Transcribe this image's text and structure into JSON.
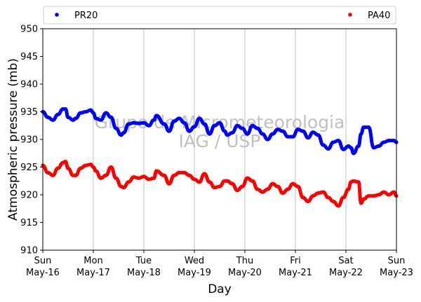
{
  "chart_data": {
    "type": "line",
    "title": "",
    "xlabel": "Day",
    "ylabel": "Atmospheric pressure (mb)",
    "ylim": [
      910,
      950
    ],
    "yticks": [
      910,
      915,
      920,
      925,
      930,
      935,
      940,
      945,
      950
    ],
    "xlim": [
      0,
      7
    ],
    "xticks": [
      {
        "x": 0,
        "day": "Sun",
        "date": "May-16"
      },
      {
        "x": 1,
        "day": "Mon",
        "date": "May-17"
      },
      {
        "x": 2,
        "day": "Tue",
        "date": "May-18"
      },
      {
        "x": 3,
        "day": "Wed",
        "date": "May-19"
      },
      {
        "x": 4,
        "day": "Thu",
        "date": "May-20"
      },
      {
        "x": 5,
        "day": "Fri",
        "date": "May-21"
      },
      {
        "x": 6,
        "day": "Sat",
        "date": "May-22"
      },
      {
        "x": 7,
        "day": "Sun",
        "date": "May-23"
      }
    ],
    "grid": "vertical",
    "legend": "top",
    "watermark": [
      "Grupo de Micrometeorologia",
      "IAG / USP"
    ],
    "series": [
      {
        "name": "PR20",
        "color": "#0000ff",
        "x": [
          0.0,
          0.1,
          0.2,
          0.3,
          0.4,
          0.45,
          0.5,
          0.6,
          0.65,
          0.75,
          0.85,
          0.95,
          1.0,
          1.05,
          1.15,
          1.25,
          1.35,
          1.45,
          1.55,
          1.6,
          1.7,
          1.8,
          1.9,
          2.0,
          2.1,
          2.2,
          2.25,
          2.4,
          2.5,
          2.6,
          2.7,
          2.8,
          2.9,
          3.0,
          3.1,
          3.2,
          3.3,
          3.4,
          3.5,
          3.6,
          3.65,
          3.75,
          3.85,
          3.95,
          4.05,
          4.15,
          4.25,
          4.35,
          4.45,
          4.55,
          4.65,
          4.75,
          4.85,
          4.95,
          5.05,
          5.15,
          5.25,
          5.35,
          5.45,
          5.55,
          5.65,
          5.75,
          5.85,
          5.95,
          6.05,
          6.1,
          6.15,
          6.25,
          6.3,
          6.35,
          6.45,
          6.55,
          6.65,
          6.75,
          6.85,
          6.95,
          7.0
        ],
        "y": [
          935.0,
          934.0,
          933.5,
          934.5,
          935.5,
          935.5,
          934.0,
          933.5,
          933.8,
          934.8,
          935.0,
          935.3,
          934.8,
          933.8,
          933.5,
          934.8,
          934.0,
          932.0,
          930.8,
          931.2,
          932.8,
          933.0,
          932.9,
          933.0,
          932.5,
          933.5,
          934.3,
          932.8,
          931.5,
          933.3,
          933.8,
          933.0,
          931.5,
          932.3,
          933.8,
          932.8,
          931.0,
          932.5,
          933.0,
          931.5,
          930.8,
          931.2,
          932.5,
          932.0,
          931.0,
          932.5,
          932.0,
          931.0,
          930.0,
          931.0,
          931.8,
          931.5,
          930.5,
          930.5,
          931.8,
          931.5,
          930.3,
          931.3,
          930.8,
          929.0,
          928.3,
          929.5,
          929.8,
          928.2,
          928.8,
          928.5,
          927.5,
          928.8,
          931.0,
          932.2,
          932.2,
          928.5,
          928.8,
          929.5,
          929.8,
          929.8,
          929.5
        ]
      },
      {
        "name": "PA40",
        "color": "#ff0000",
        "x": [
          0.0,
          0.1,
          0.2,
          0.3,
          0.4,
          0.45,
          0.5,
          0.6,
          0.65,
          0.75,
          0.85,
          0.95,
          1.0,
          1.05,
          1.15,
          1.25,
          1.35,
          1.45,
          1.55,
          1.6,
          1.7,
          1.8,
          1.9,
          2.0,
          2.1,
          2.2,
          2.25,
          2.4,
          2.5,
          2.6,
          2.7,
          2.8,
          2.9,
          3.0,
          3.1,
          3.2,
          3.3,
          3.4,
          3.5,
          3.6,
          3.65,
          3.75,
          3.85,
          3.95,
          4.05,
          4.15,
          4.25,
          4.35,
          4.45,
          4.55,
          4.65,
          4.75,
          4.85,
          4.95,
          5.05,
          5.15,
          5.25,
          5.35,
          5.45,
          5.55,
          5.65,
          5.75,
          5.85,
          5.95,
          6.05,
          6.1,
          6.15,
          6.25,
          6.3,
          6.35,
          6.45,
          6.55,
          6.65,
          6.75,
          6.85,
          6.95,
          7.0
        ],
        "y": [
          925.3,
          924.0,
          923.5,
          924.8,
          925.8,
          926.0,
          924.8,
          923.5,
          923.5,
          924.8,
          925.3,
          925.5,
          925.0,
          924.3,
          923.0,
          923.5,
          925.0,
          923.0,
          921.5,
          921.3,
          922.3,
          923.2,
          923.0,
          923.3,
          922.8,
          923.0,
          924.3,
          923.5,
          922.0,
          923.5,
          924.0,
          924.0,
          923.5,
          922.8,
          922.3,
          923.8,
          922.3,
          921.3,
          921.5,
          922.5,
          922.5,
          922.0,
          920.8,
          921.5,
          923.0,
          922.5,
          921.0,
          920.5,
          921.0,
          922.0,
          921.5,
          920.3,
          921.0,
          922.0,
          921.5,
          919.5,
          918.8,
          919.8,
          920.3,
          920.5,
          919.5,
          918.8,
          918.0,
          919.5,
          921.0,
          922.3,
          922.5,
          922.3,
          918.5,
          919.2,
          919.8,
          919.8,
          920.0,
          920.5,
          920.0,
          920.5,
          919.8
        ]
      }
    ]
  }
}
